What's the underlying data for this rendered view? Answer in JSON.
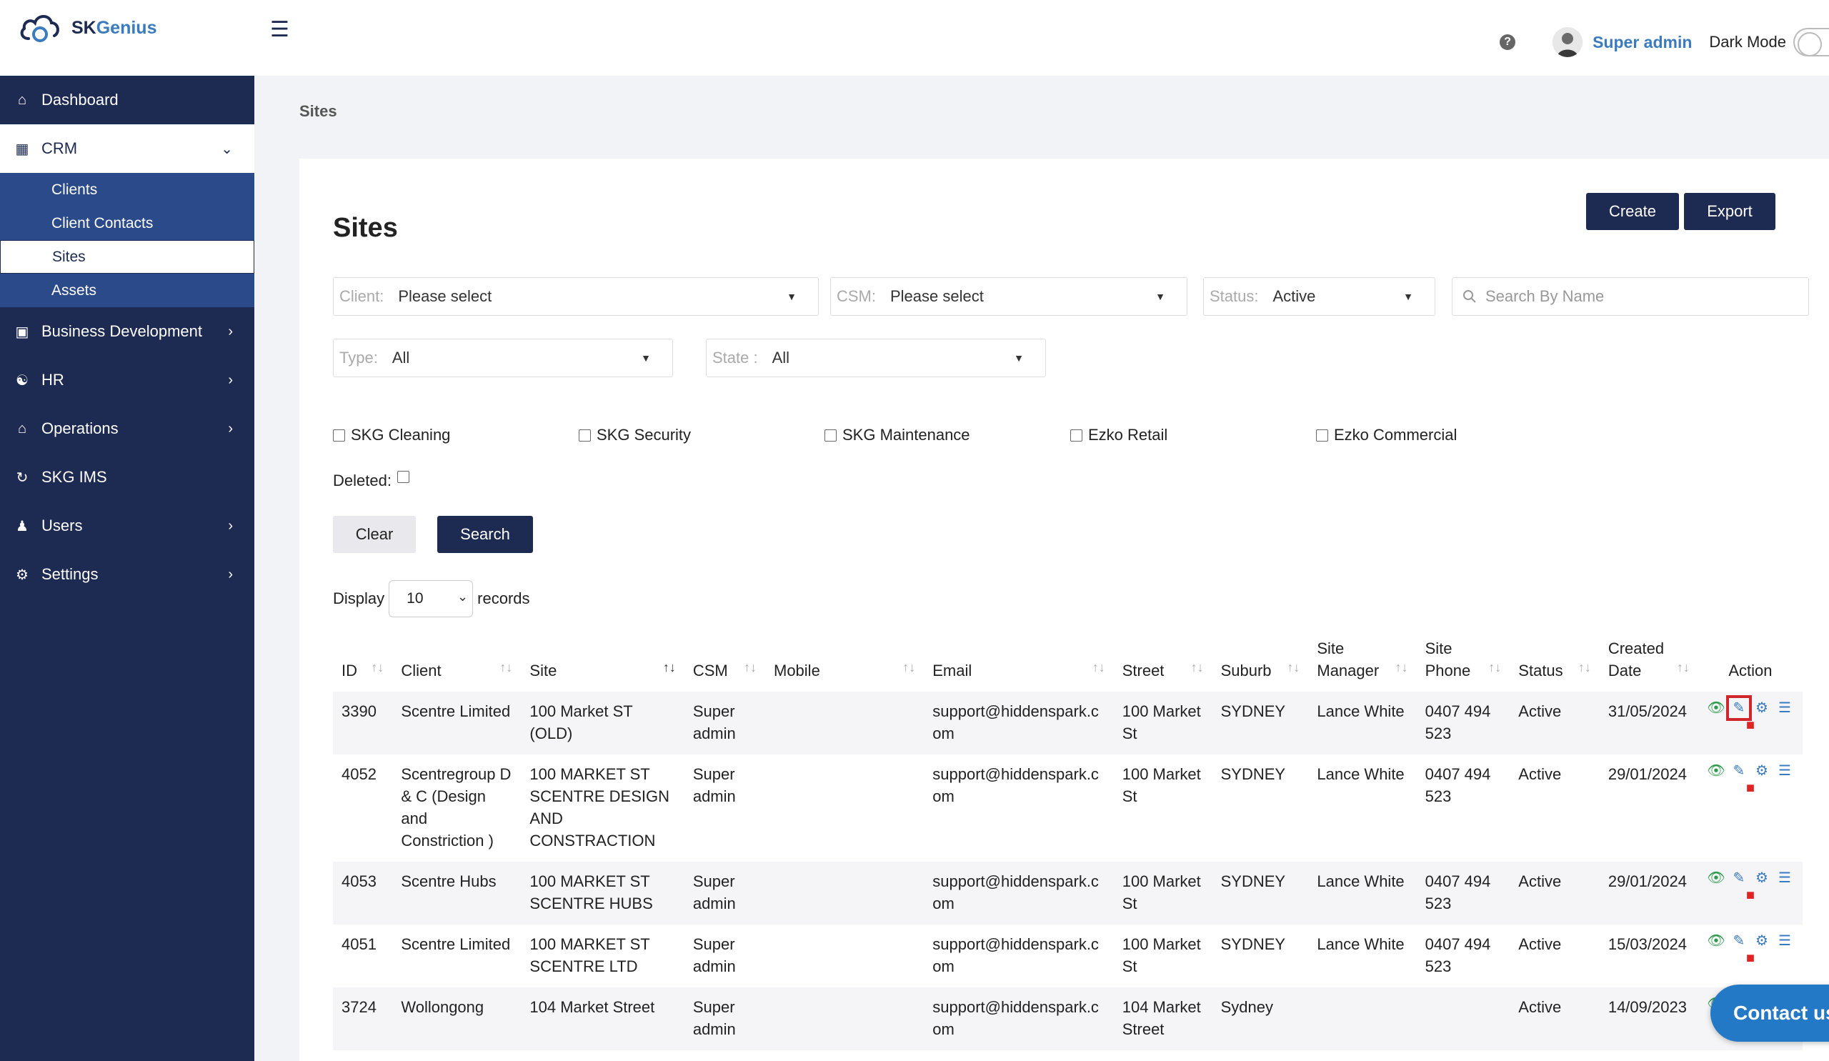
{
  "app": {
    "logo_prefix": "SK",
    "logo_suffix": "Genius"
  },
  "header": {
    "help_icon": "question-circle-icon",
    "user_name": "Super admin",
    "dark_mode_label": "Dark Mode",
    "dark_mode_on": false
  },
  "sidebar": {
    "items": [
      {
        "label": "Dashboard",
        "icon": "home-icon"
      },
      {
        "label": "CRM",
        "icon": "building-icon"
      },
      {
        "label": "Business Development",
        "icon": "folder-icon"
      },
      {
        "label": "HR",
        "icon": "handshake-icon"
      },
      {
        "label": "Operations",
        "icon": "house-user-icon"
      },
      {
        "label": "SKG IMS",
        "icon": "sync-icon"
      },
      {
        "label": "Users",
        "icon": "users-icon"
      },
      {
        "label": "Settings",
        "icon": "gear-icon"
      }
    ],
    "crm_sub": [
      {
        "label": "Clients"
      },
      {
        "label": "Client Contacts"
      },
      {
        "label": "Sites"
      },
      {
        "label": "Assets"
      }
    ]
  },
  "breadcrumb": "Sites",
  "page": {
    "title": "Sites",
    "create_label": "Create",
    "export_label": "Export",
    "filters": {
      "client_label": "Client:",
      "client_value": "Please select",
      "csm_label": "CSM:",
      "csm_value": "Please select",
      "status_label": "Status:",
      "status_value": "Active",
      "search_placeholder": "Search By Name",
      "type_label": "Type:",
      "type_value": "All",
      "state_label": "State :",
      "state_value": "All"
    },
    "checkboxes": [
      "SKG Cleaning",
      "SKG Security",
      "SKG Maintenance",
      "Ezko Retail",
      "Ezko Commercial"
    ],
    "deleted_label": "Deleted:",
    "clear_label": "Clear",
    "search_label": "Search",
    "display_label": "Display",
    "display_value": "10",
    "records_label": "records"
  },
  "table": {
    "headers": [
      "ID",
      "Client",
      "Site",
      "CSM",
      "Mobile",
      "Email",
      "Street",
      "Suburb",
      "Site Manager",
      "Site Phone",
      "Status",
      "Created Date",
      "Action"
    ],
    "rows": [
      {
        "id": "3390",
        "client": "Scentre Limited",
        "site": "100 Market ST (OLD)",
        "csm": "Super admin",
        "mobile": "",
        "email": "support@hiddenspark.com",
        "street": "100 Market St",
        "suburb": "SYDNEY",
        "manager": "Lance White",
        "phone": "0407 494 523",
        "status": "Active",
        "created": "31/05/2024"
      },
      {
        "id": "4052",
        "client": "Scentregroup D & C (Design and Constriction )",
        "site": "100 MARKET ST SCENTRE DESIGN AND CONSTRACTION",
        "csm": "Super admin",
        "mobile": "",
        "email": "support@hiddenspark.com",
        "street": "100 Market St",
        "suburb": "SYDNEY",
        "manager": "Lance White",
        "phone": "0407 494 523",
        "status": "Active",
        "created": "29/01/2024"
      },
      {
        "id": "4053",
        "client": "Scentre Hubs",
        "site": "100 MARKET ST SCENTRE HUBS",
        "csm": "Super admin",
        "mobile": "",
        "email": "support@hiddenspark.com",
        "street": "100 Market St",
        "suburb": "SYDNEY",
        "manager": "Lance White",
        "phone": "0407 494 523",
        "status": "Active",
        "created": "29/01/2024"
      },
      {
        "id": "4051",
        "client": "Scentre Limited",
        "site": "100 MARKET ST SCENTRE LTD",
        "csm": "Super admin",
        "mobile": "",
        "email": "support@hiddenspark.com",
        "street": "100 Market St",
        "suburb": "SYDNEY",
        "manager": "Lance White",
        "phone": "0407 494 523",
        "status": "Active",
        "created": "15/03/2024"
      },
      {
        "id": "3724",
        "client": "Wollongong",
        "site": "104 Market Street",
        "csm": "Super admin",
        "mobile": "",
        "email": "support@hiddenspark.com",
        "street": "104 Market Street",
        "suburb": "Sydney",
        "manager": "",
        "phone": "",
        "status": "Active",
        "created": "14/09/2023"
      }
    ]
  },
  "contact_button": "Contact us",
  "colors": {
    "sidebar": "#1d2a52",
    "sub_nav": "#2b4a8a",
    "accent": "#3a7bbf",
    "view": "#2e9b4e",
    "delete": "#e02424",
    "highlight": "#d0252a"
  }
}
